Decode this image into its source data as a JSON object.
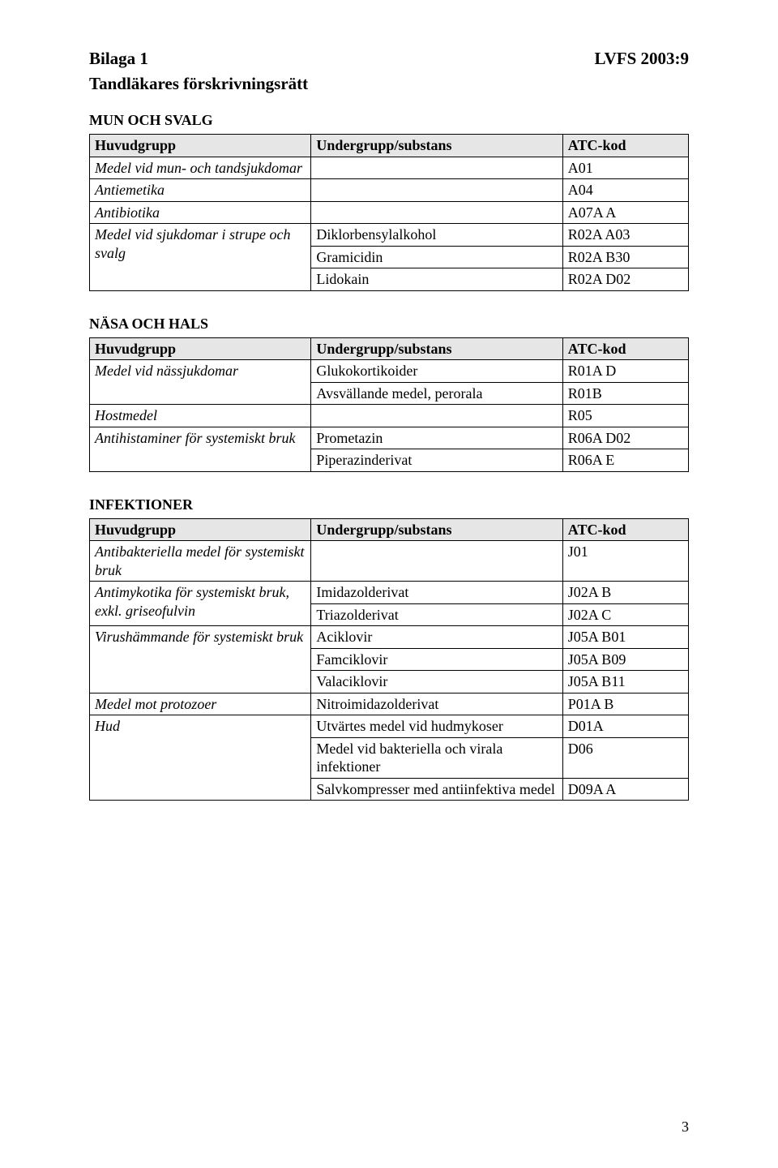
{
  "header": {
    "left": "Bilaga 1",
    "right": "LVFS 2003:9",
    "subtitle": "Tandläkares förskrivningsrätt"
  },
  "columnHeaders": {
    "c1": "Huvudgrupp",
    "c2": "Undergrupp/substans",
    "c3": "ATC-kod"
  },
  "section1": {
    "title": "MUN OCH SVALG",
    "row1": {
      "c1": "Medel vid mun- och tandsjukdomar",
      "c2": "",
      "c3": "A01"
    },
    "row2": {
      "c1": "Antiemetika",
      "c2": "",
      "c3": "A04"
    },
    "row3": {
      "c1": "Antibiotika",
      "c2": "",
      "c3": "A07A A"
    },
    "row4": {
      "c1": "Medel vid sjukdomar i strupe och svalg",
      "c2a": "Diklorbensylalkohol",
      "c3a": "R02A A03",
      "c2b": "Gramicidin",
      "c3b": "R02A B30",
      "c2c": "Lidokain",
      "c3c": "R02A D02"
    }
  },
  "section2": {
    "title": "NÄSA OCH HALS",
    "row1": {
      "c1": "Medel vid nässjukdomar",
      "c2a": "Glukokortikoider",
      "c3a": "R01A D",
      "c2b": "Avsvällande medel, perorala",
      "c3b": "R01B"
    },
    "row2": {
      "c1": "Hostmedel",
      "c2": "",
      "c3": "R05"
    },
    "row3": {
      "c1": "Antihistaminer för systemiskt bruk",
      "c2a": "Prometazin",
      "c3a": "R06A D02",
      "c2b": "Piperazinderivat",
      "c3b": "R06A E"
    }
  },
  "section3": {
    "title": "INFEKTIONER",
    "row1": {
      "c1": "Antibakteriella medel för systemiskt bruk",
      "c2": "",
      "c3": "J01"
    },
    "row2": {
      "c1": "Antimykotika för systemiskt bruk, exkl. griseofulvin",
      "c2a": "Imidazolderivat",
      "c3a": "J02A B",
      "c2b": "Triazolderivat",
      "c3b": "J02A C"
    },
    "row3": {
      "c1": "Virushämmande för systemiskt bruk",
      "c2a": "Aciklovir",
      "c3a": "J05A B01",
      "c2b": "Famciklovir",
      "c3b": "J05A B09",
      "c2c": "Valaciklovir",
      "c3c": "J05A B11"
    },
    "row4": {
      "c1": "Medel mot protozoer",
      "c2": "Nitroimidazolderivat",
      "c3": "P01A B"
    },
    "row5": {
      "c1": "Hud",
      "c2a": "Utvärtes medel vid hudmykoser",
      "c3a": "D01A",
      "c2b": "Medel vid bakteriella och virala infektioner",
      "c3b": "D06",
      "c2c": "Salvkompresser med antiinfektiva medel",
      "c3c": "D09A A"
    }
  },
  "pageNumber": "3"
}
